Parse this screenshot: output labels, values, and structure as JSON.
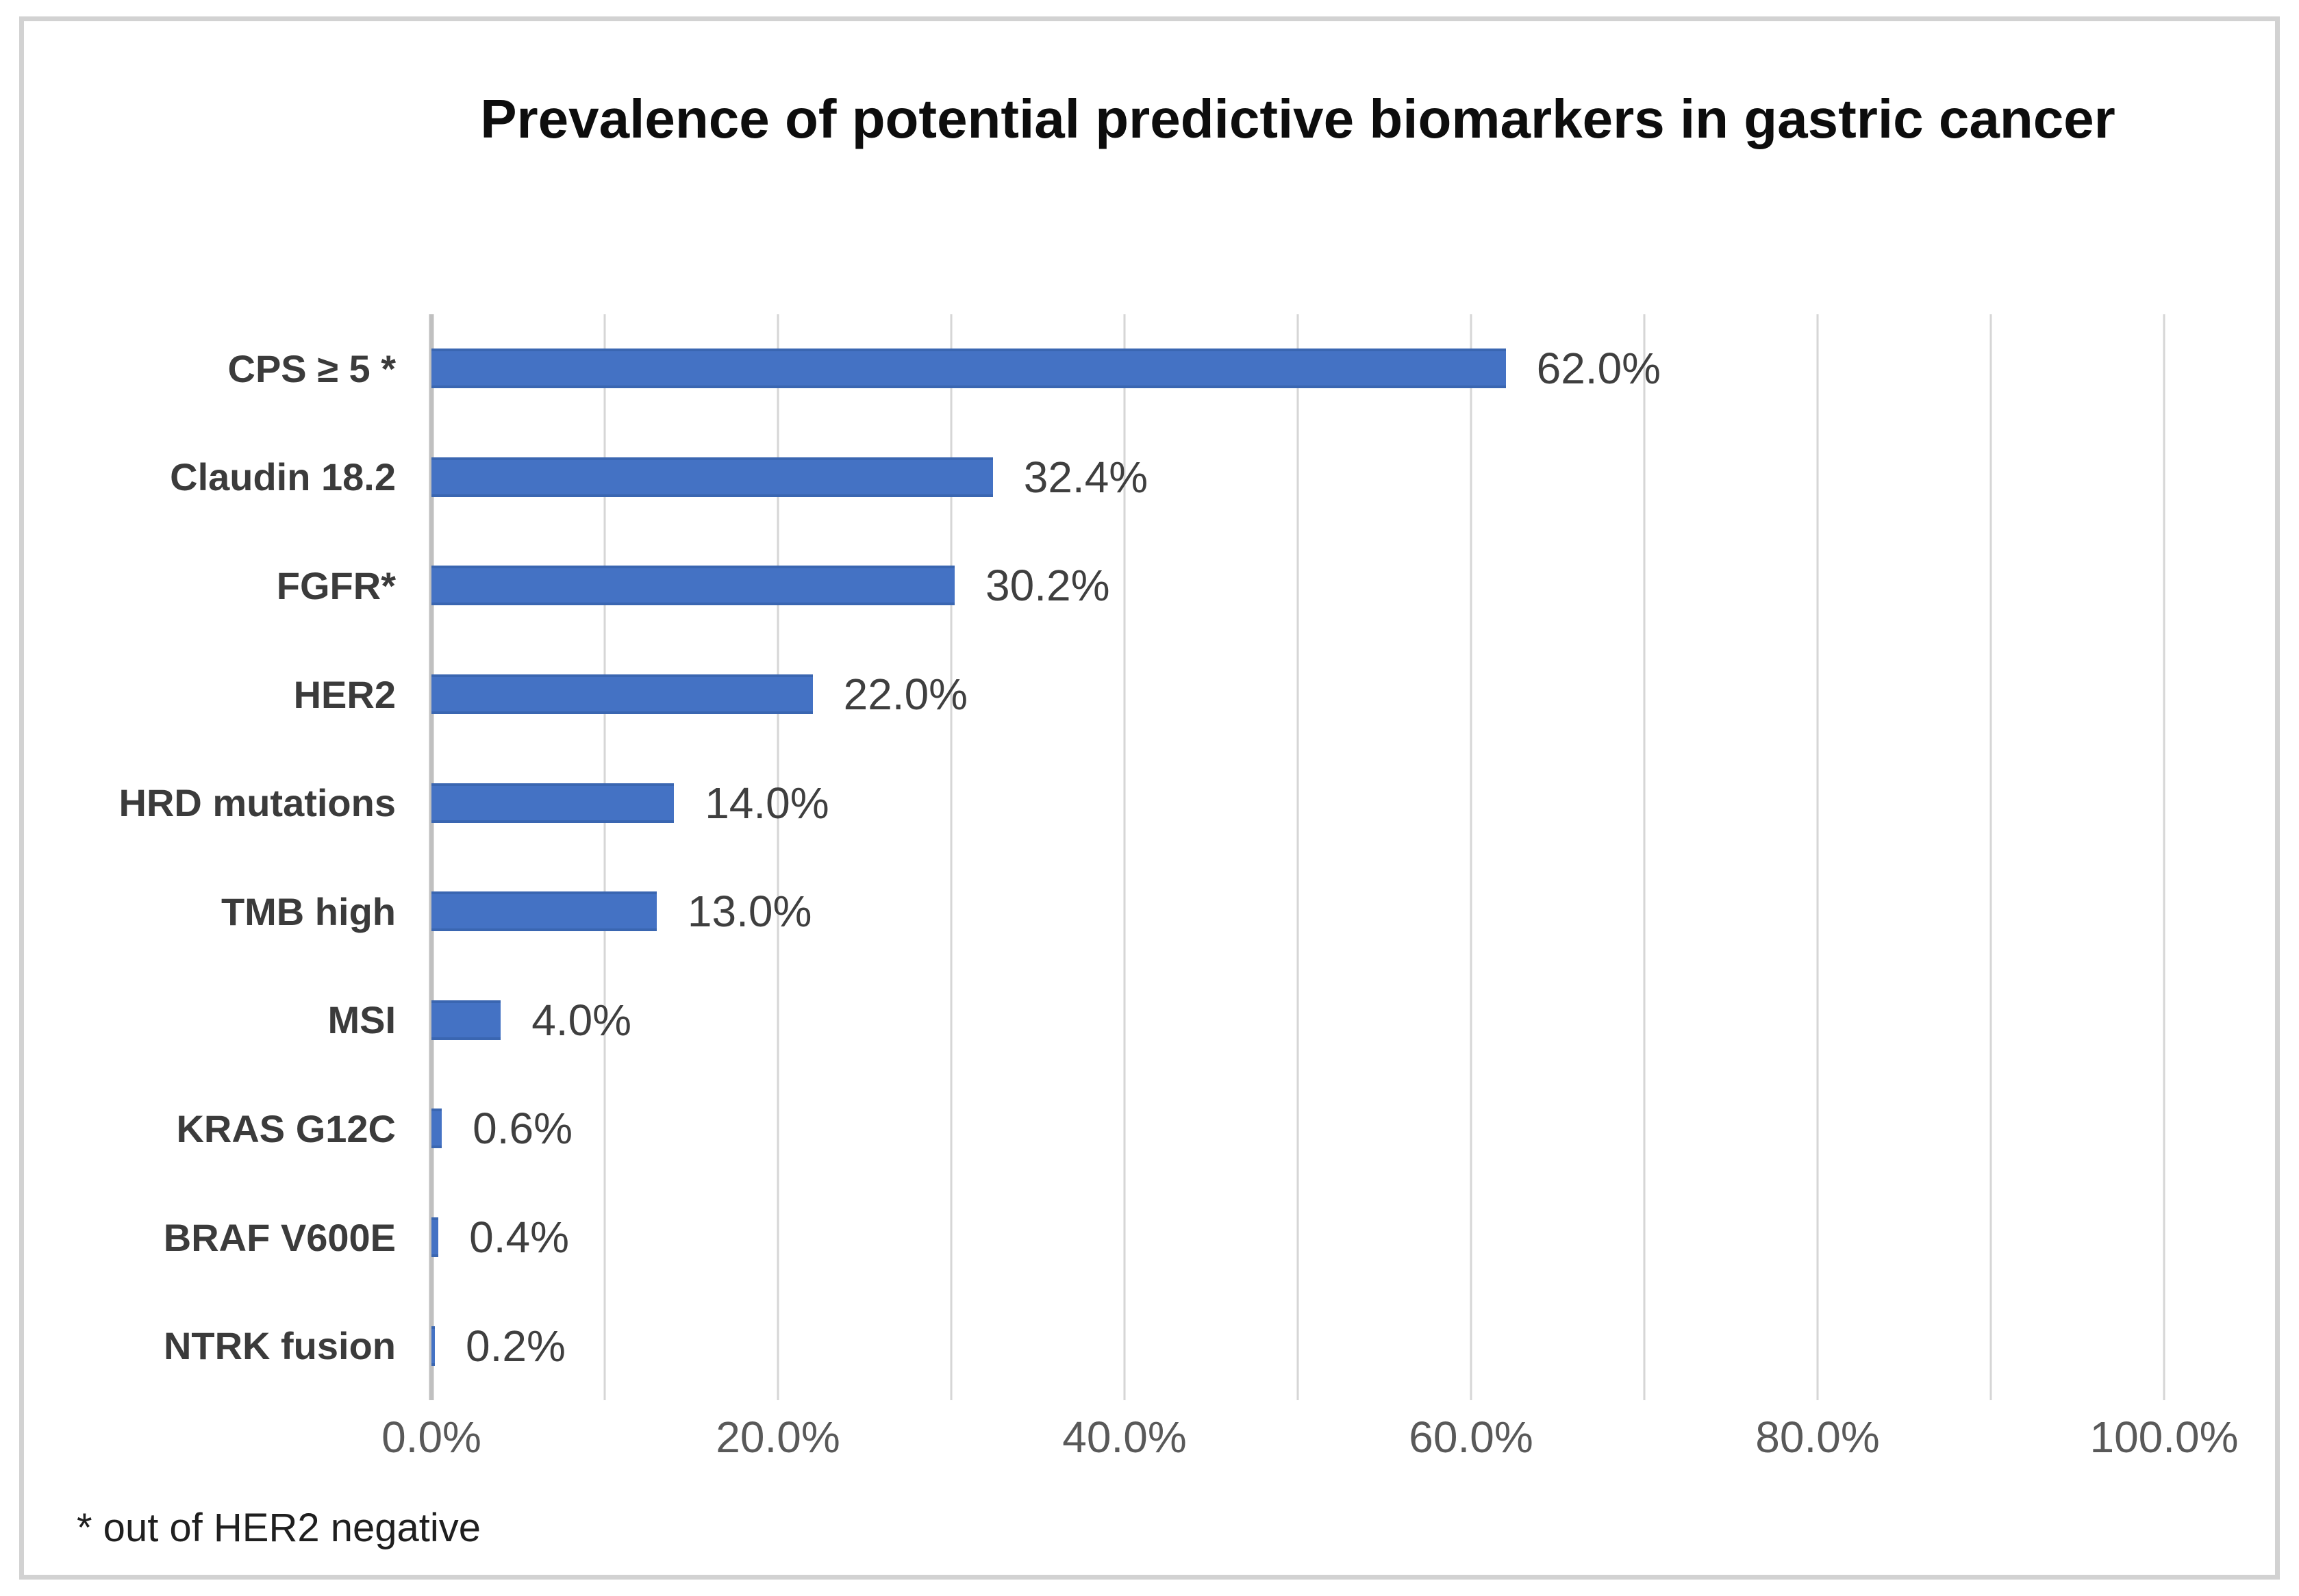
{
  "chart_data": {
    "type": "bar",
    "orientation": "horizontal",
    "title": "Prevalence of potential predictive biomarkers in gastric cancer",
    "categories": [
      "CPS ≥ 5 *",
      "Claudin 18.2",
      "FGFR*",
      "HER2",
      "HRD mutations",
      "TMB high",
      "MSI",
      "KRAS G12C",
      "BRAF V600E",
      "NTRK fusion"
    ],
    "values": [
      62.0,
      32.4,
      30.2,
      22.0,
      14.0,
      13.0,
      4.0,
      0.6,
      0.4,
      0.2
    ],
    "value_labels": [
      "62.0%",
      "32.4%",
      "30.2%",
      "22.0%",
      "14.0%",
      "13.0%",
      "4.0%",
      "0.6%",
      "0.4%",
      "0.2%"
    ],
    "x_ticks": [
      "0.0%",
      "20.0%",
      "40.0%",
      "60.0%",
      "80.0%",
      "100.0%"
    ],
    "xlim": [
      0,
      100
    ],
    "gridlines_every_percent": 10,
    "legend": "none",
    "bar_color": "#4472C4",
    "bar_edge_color": "#3A66B1",
    "gridline_color": "#D6D6D6",
    "footnote": "* out of HER2 negative"
  }
}
